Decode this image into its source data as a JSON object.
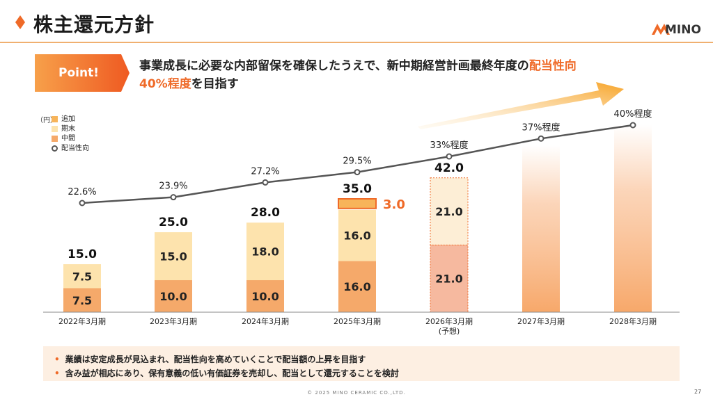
{
  "header": {
    "title": "株主還元方針",
    "logo_text": "MINO"
  },
  "point": {
    "badge": "Point!",
    "line1_plain": "事業成長に必要な内部留保を確保したうえで、新中期経営計画最終年度の",
    "line1_accent": "配当性向",
    "line2_accent": "40%程度",
    "line2_plain": "を目指す"
  },
  "legend": {
    "unit": "（円）",
    "items": [
      "追加",
      "期末",
      "中間",
      "配当性向"
    ]
  },
  "colors": {
    "interim": "#f5a96a",
    "yearend": "#fde3ad",
    "additional": "#f7b45a",
    "forecast_interim": "#f6b99f",
    "forecast_yearend": "#fdeed6",
    "payout_line": "#555555",
    "accent": "#ef6a28"
  },
  "chart_data": {
    "type": "bar",
    "categories": [
      "2022年3月期",
      "2023年3月期",
      "2024年3月期",
      "2025年3月期",
      "2026年3月期",
      "2027年3月期",
      "2028年3月期"
    ],
    "category_sublabels": [
      "",
      "",
      "",
      "",
      "(予想)",
      "",
      ""
    ],
    "series": [
      {
        "name": "中間",
        "values": [
          7.5,
          10.0,
          10.0,
          16.0,
          21.0,
          null,
          null
        ]
      },
      {
        "name": "期末",
        "values": [
          7.5,
          15.0,
          18.0,
          16.0,
          21.0,
          null,
          null
        ]
      },
      {
        "name": "追加",
        "values": [
          null,
          null,
          null,
          3.0,
          null,
          null,
          null
        ]
      }
    ],
    "segment_labels": {
      "中間": [
        "7.5",
        "10.0",
        "10.0",
        "16.0",
        "21.0",
        "",
        ""
      ],
      "期末": [
        "7.5",
        "15.0",
        "18.0",
        "16.0",
        "21.0",
        "",
        ""
      ],
      "追加": [
        "",
        "",
        "",
        "3.0",
        "",
        "",
        ""
      ]
    },
    "totals": [
      "15.0",
      "25.0",
      "28.0",
      "35.0",
      "42.0",
      "",
      ""
    ],
    "payout_ratio": {
      "name": "配当性向",
      "values": [
        22.6,
        23.9,
        27.2,
        29.5,
        33,
        37,
        40
      ],
      "labels": [
        "22.6%",
        "23.9%",
        "27.2%",
        "29.5%",
        "33%程度",
        "37%程度",
        "40%程度"
      ]
    },
    "ylim": [
      0,
      45
    ]
  },
  "notes": [
    "業績は安定成長が見込まれ、配当性向を高めていくことで配当額の上昇を目指す",
    "含み益が相応にあり、保有意義の低い有価証券を売却し、配当として還元することを検討"
  ],
  "footer": {
    "copyright": "© 2025 MINO CERAMIC CO.,LTD.",
    "page": "27"
  }
}
